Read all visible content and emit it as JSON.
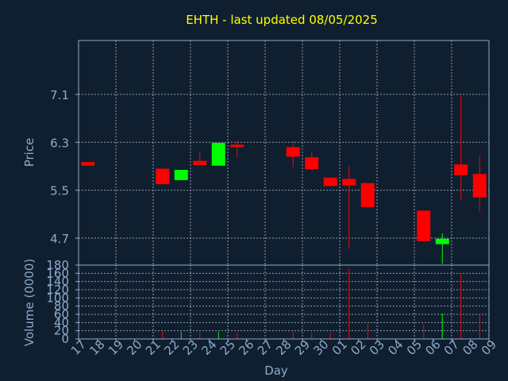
{
  "title": "EHTH - last updated 08/05/2025",
  "colors": {
    "background": "#0f1f30",
    "title": "#ffff00",
    "axis_text": "#8fa9c8",
    "frame": "#8fa9c8",
    "grid": "#c0c8d0",
    "up": "#00ff00",
    "down": "#ff0000"
  },
  "chart_data": [
    {
      "type": "candlestick",
      "ylabel": "Price",
      "xlabel": "Day",
      "yticks": [
        4.7,
        5.5,
        6.3,
        7.1
      ],
      "ytick_labels": [
        "4.7",
        "5.5",
        "6.3",
        "7.1"
      ],
      "ylim": [
        4.25,
        8.0
      ],
      "x_tick_labels": [
        "17",
        "18",
        "19",
        "20",
        "21",
        "22",
        "23",
        "24",
        "25",
        "26",
        "27",
        "28",
        "29",
        "30",
        "01",
        "02",
        "03",
        "04",
        "05",
        "06",
        "07",
        "08",
        "09"
      ],
      "grid": true,
      "candles": [
        {
          "x": 0,
          "open": 5.97,
          "close": 5.91,
          "high": 5.97,
          "low": 5.91
        },
        {
          "x": 4,
          "open": 5.86,
          "close": 5.6,
          "high": 5.86,
          "low": 5.6
        },
        {
          "x": 5,
          "open": 5.67,
          "close": 5.84,
          "high": 5.84,
          "low": 5.67
        },
        {
          "x": 6,
          "open": 5.99,
          "close": 5.92,
          "high": 6.15,
          "low": 5.92
        },
        {
          "x": 7,
          "open": 5.91,
          "close": 6.29,
          "high": 6.29,
          "low": 5.91
        },
        {
          "x": 8,
          "open": 6.26,
          "close": 6.22,
          "high": 6.32,
          "low": 6.05
        },
        {
          "x": 11,
          "open": 6.22,
          "close": 6.06,
          "high": 6.32,
          "low": 5.89
        },
        {
          "x": 12,
          "open": 6.05,
          "close": 5.85,
          "high": 6.14,
          "low": 5.85
        },
        {
          "x": 13,
          "open": 5.71,
          "close": 5.57,
          "high": 5.71,
          "low": 5.57
        },
        {
          "x": 14,
          "open": 5.69,
          "close": 5.58,
          "high": 5.9,
          "low": 4.52
        },
        {
          "x": 15,
          "open": 5.62,
          "close": 5.22,
          "high": 5.62,
          "low": 5.22
        },
        {
          "x": 18,
          "open": 5.16,
          "close": 4.65,
          "high": 5.16,
          "low": 4.65
        },
        {
          "x": 19,
          "open": 4.6,
          "close": 4.69,
          "high": 4.78,
          "low": 4.27
        },
        {
          "x": 20,
          "open": 5.93,
          "close": 5.75,
          "high": 7.08,
          "low": 5.35
        },
        {
          "x": 21,
          "open": 5.77,
          "close": 5.38,
          "high": 6.08,
          "low": 5.15
        }
      ]
    },
    {
      "type": "bar",
      "ylabel": "Volume (0000)",
      "ylim": [
        0,
        180
      ],
      "yticks": [
        0,
        20,
        40,
        60,
        80,
        100,
        120,
        140,
        160,
        180
      ],
      "ytick_labels": [
        "0",
        "20",
        "40",
        "60",
        "80",
        "100",
        "120",
        "140",
        "160",
        "180"
      ],
      "grid": true,
      "bars": [
        {
          "x": 4,
          "value": 18,
          "dir": "down"
        },
        {
          "x": 5,
          "value": 18,
          "dir": "up"
        },
        {
          "x": 6,
          "value": 16,
          "dir": "down"
        },
        {
          "x": 7,
          "value": 18,
          "dir": "up"
        },
        {
          "x": 8,
          "value": 15,
          "dir": "down"
        },
        {
          "x": 11,
          "value": 18,
          "dir": "down"
        },
        {
          "x": 12,
          "value": 16,
          "dir": "down"
        },
        {
          "x": 13,
          "value": 15,
          "dir": "down"
        },
        {
          "x": 14,
          "value": 172,
          "dir": "down"
        },
        {
          "x": 15,
          "value": 38,
          "dir": "down"
        },
        {
          "x": 18,
          "value": 36,
          "dir": "down"
        },
        {
          "x": 19,
          "value": 62,
          "dir": "up"
        },
        {
          "x": 20,
          "value": 160,
          "dir": "down"
        },
        {
          "x": 21,
          "value": 62,
          "dir": "down"
        }
      ]
    }
  ]
}
